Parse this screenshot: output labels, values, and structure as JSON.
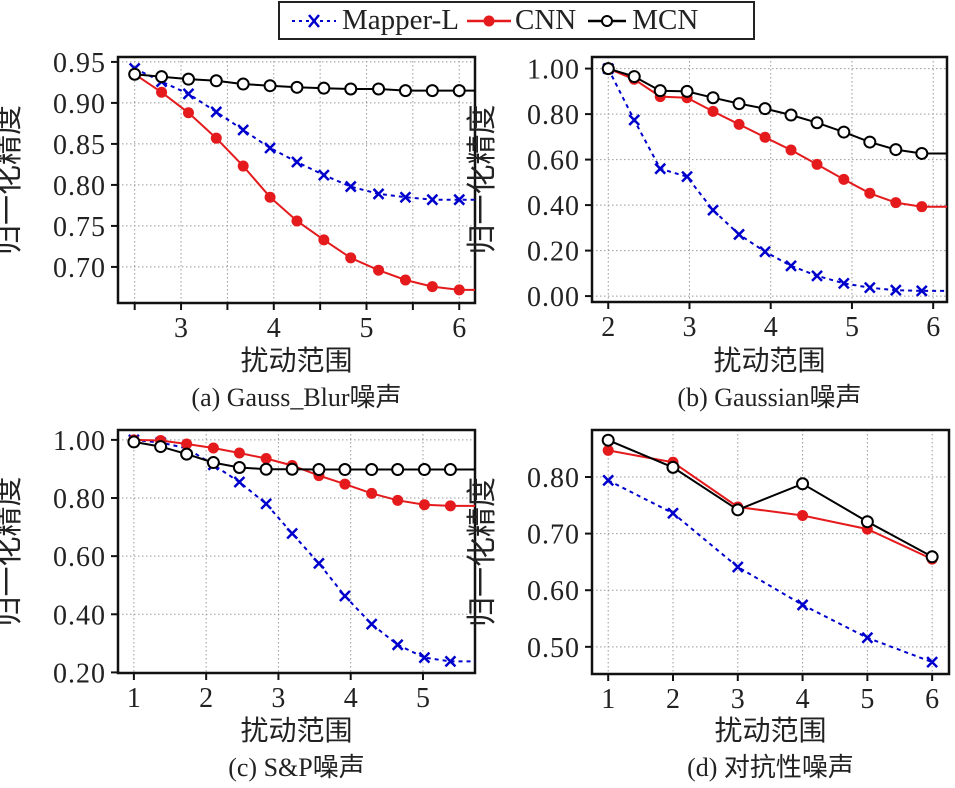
{
  "legend": [
    {
      "name": "Mapper-L",
      "color": "#0000cc",
      "style": "dotted",
      "marker": "x"
    },
    {
      "name": "CNN",
      "color": "#e41a1c",
      "style": "solid",
      "marker": "filled-circle"
    },
    {
      "name": "MCN",
      "color": "#000000",
      "style": "solid",
      "marker": "open-circle"
    }
  ],
  "chart_data": [
    {
      "type": "line",
      "title": "(a) Gauss_Blur噪声",
      "xlabel": "扰动范围",
      "ylabel": "归一化精度",
      "xlim": [
        2.32,
        6.17
      ],
      "ylim": [
        0.656,
        0.956
      ],
      "xticks": [
        3,
        4,
        5,
        6
      ],
      "xtick_labels": [
        "3",
        "4",
        "5",
        "6"
      ],
      "xgrid": [
        2.5,
        3,
        3.5,
        4,
        4.5,
        5,
        5.5,
        6
      ],
      "yticks": [
        0.7,
        0.75,
        0.8,
        0.85,
        0.9,
        0.95
      ],
      "ytick_labels": [
        "0.70",
        "0.75",
        "0.80",
        "0.85",
        "0.90",
        "0.95"
      ],
      "grid": true,
      "x": [
        2.5,
        2.79,
        3.08,
        3.38,
        3.67,
        3.96,
        4.25,
        4.54,
        4.83,
        5.13,
        5.42,
        5.71,
        6.0
      ],
      "series": [
        {
          "name": "Mapper-L",
          "values": [
            0.942,
            0.926,
            0.911,
            0.889,
            0.867,
            0.845,
            0.828,
            0.812,
            0.798,
            0.789,
            0.785,
            0.782,
            0.782
          ]
        },
        {
          "name": "CNN",
          "values": [
            0.935,
            0.913,
            0.888,
            0.857,
            0.823,
            0.785,
            0.756,
            0.733,
            0.711,
            0.696,
            0.684,
            0.676,
            0.672
          ]
        },
        {
          "name": "MCN",
          "values": [
            0.935,
            0.932,
            0.929,
            0.927,
            0.923,
            0.921,
            0.919,
            0.918,
            0.917,
            0.917,
            0.915,
            0.915,
            0.915
          ]
        }
      ]
    },
    {
      "type": "line",
      "title": "(b) Gaussian噪声",
      "xlabel": "扰动范围",
      "ylabel": "归一化精度",
      "xlim": [
        1.8,
        6.17
      ],
      "ylim": [
        -0.026,
        1.051
      ],
      "xticks": [
        2,
        3,
        4,
        5,
        6
      ],
      "xtick_labels": [
        "2",
        "3",
        "4",
        "5",
        "6"
      ],
      "xgrid": [
        2,
        3,
        4,
        5,
        6
      ],
      "yticks": [
        0.0,
        0.2,
        0.4,
        0.6,
        0.8,
        1.0
      ],
      "ytick_labels": [
        "0.00",
        "0.20",
        "0.40",
        "0.60",
        "0.80",
        "1.00"
      ],
      "grid": true,
      "x": [
        2.0,
        2.32,
        2.64,
        2.97,
        3.29,
        3.61,
        3.93,
        4.25,
        4.57,
        4.9,
        5.22,
        5.54,
        5.86
      ],
      "series": [
        {
          "name": "Mapper-L",
          "values": [
            1.0,
            0.774,
            0.56,
            0.525,
            0.378,
            0.271,
            0.195,
            0.133,
            0.089,
            0.056,
            0.037,
            0.026,
            0.023
          ]
        },
        {
          "name": "CNN",
          "values": [
            1.0,
            0.953,
            0.877,
            0.872,
            0.812,
            0.755,
            0.698,
            0.642,
            0.579,
            0.513,
            0.452,
            0.411,
            0.393
          ]
        },
        {
          "name": "MCN",
          "values": [
            1.0,
            0.965,
            0.903,
            0.9,
            0.872,
            0.846,
            0.824,
            0.796,
            0.762,
            0.721,
            0.677,
            0.644,
            0.627
          ]
        }
      ]
    },
    {
      "type": "line",
      "title": "(c) S&P噪声",
      "xlabel": "扰动范围",
      "ylabel": "归一化精度",
      "xlim": [
        0.78,
        5.72
      ],
      "ylim": [
        0.198,
        1.034
      ],
      "xticks": [
        1,
        2,
        3,
        4,
        5
      ],
      "xtick_labels": [
        "1",
        "2",
        "3",
        "4",
        "5"
      ],
      "xgrid": [
        1,
        2,
        3,
        4,
        5
      ],
      "yticks": [
        0.2,
        0.4,
        0.6,
        0.8,
        1.0
      ],
      "ytick_labels": [
        "0.20",
        "0.40",
        "0.60",
        "0.80",
        "1.00"
      ],
      "grid": true,
      "x": [
        1.0,
        1.37,
        1.73,
        2.1,
        2.46,
        2.83,
        3.19,
        3.56,
        3.92,
        4.29,
        4.65,
        5.02,
        5.38
      ],
      "series": [
        {
          "name": "Mapper-L",
          "values": [
            1.0,
            0.991,
            0.971,
            0.914,
            0.855,
            0.78,
            0.678,
            0.575,
            0.463,
            0.366,
            0.295,
            0.251,
            0.238
          ]
        },
        {
          "name": "CNN",
          "values": [
            1.0,
            0.998,
            0.986,
            0.972,
            0.955,
            0.936,
            0.912,
            0.877,
            0.848,
            0.816,
            0.792,
            0.777,
            0.773
          ]
        },
        {
          "name": "MCN",
          "values": [
            0.993,
            0.977,
            0.951,
            0.922,
            0.905,
            0.899,
            0.899,
            0.898,
            0.898,
            0.898,
            0.898,
            0.898,
            0.898
          ]
        }
      ]
    },
    {
      "type": "line",
      "title": "(d) 对抗性噪声",
      "xlabel": "扰动范围",
      "ylabel": "归一化精度",
      "xlim": [
        0.75,
        6.26
      ],
      "ylim": [
        0.452,
        0.883
      ],
      "xticks": [
        1,
        2,
        3,
        4,
        5,
        6
      ],
      "xtick_labels": [
        "1",
        "2",
        "3",
        "4",
        "5",
        "6"
      ],
      "xgrid": [
        1,
        2,
        3,
        4,
        5,
        6
      ],
      "yticks": [
        0.5,
        0.6,
        0.7,
        0.8
      ],
      "ytick_labels": [
        "0.50",
        "0.60",
        "0.70",
        "0.80"
      ],
      "grid": true,
      "x": [
        1,
        2,
        3,
        4,
        5,
        6
      ],
      "series": [
        {
          "name": "Mapper-L",
          "values": [
            0.794,
            0.736,
            0.641,
            0.574,
            0.516,
            0.473
          ]
        },
        {
          "name": "CNN",
          "values": [
            0.847,
            0.826,
            0.747,
            0.732,
            0.708,
            0.655
          ]
        },
        {
          "name": "MCN",
          "values": [
            0.865,
            0.817,
            0.742,
            0.788,
            0.721,
            0.659
          ]
        }
      ]
    }
  ]
}
